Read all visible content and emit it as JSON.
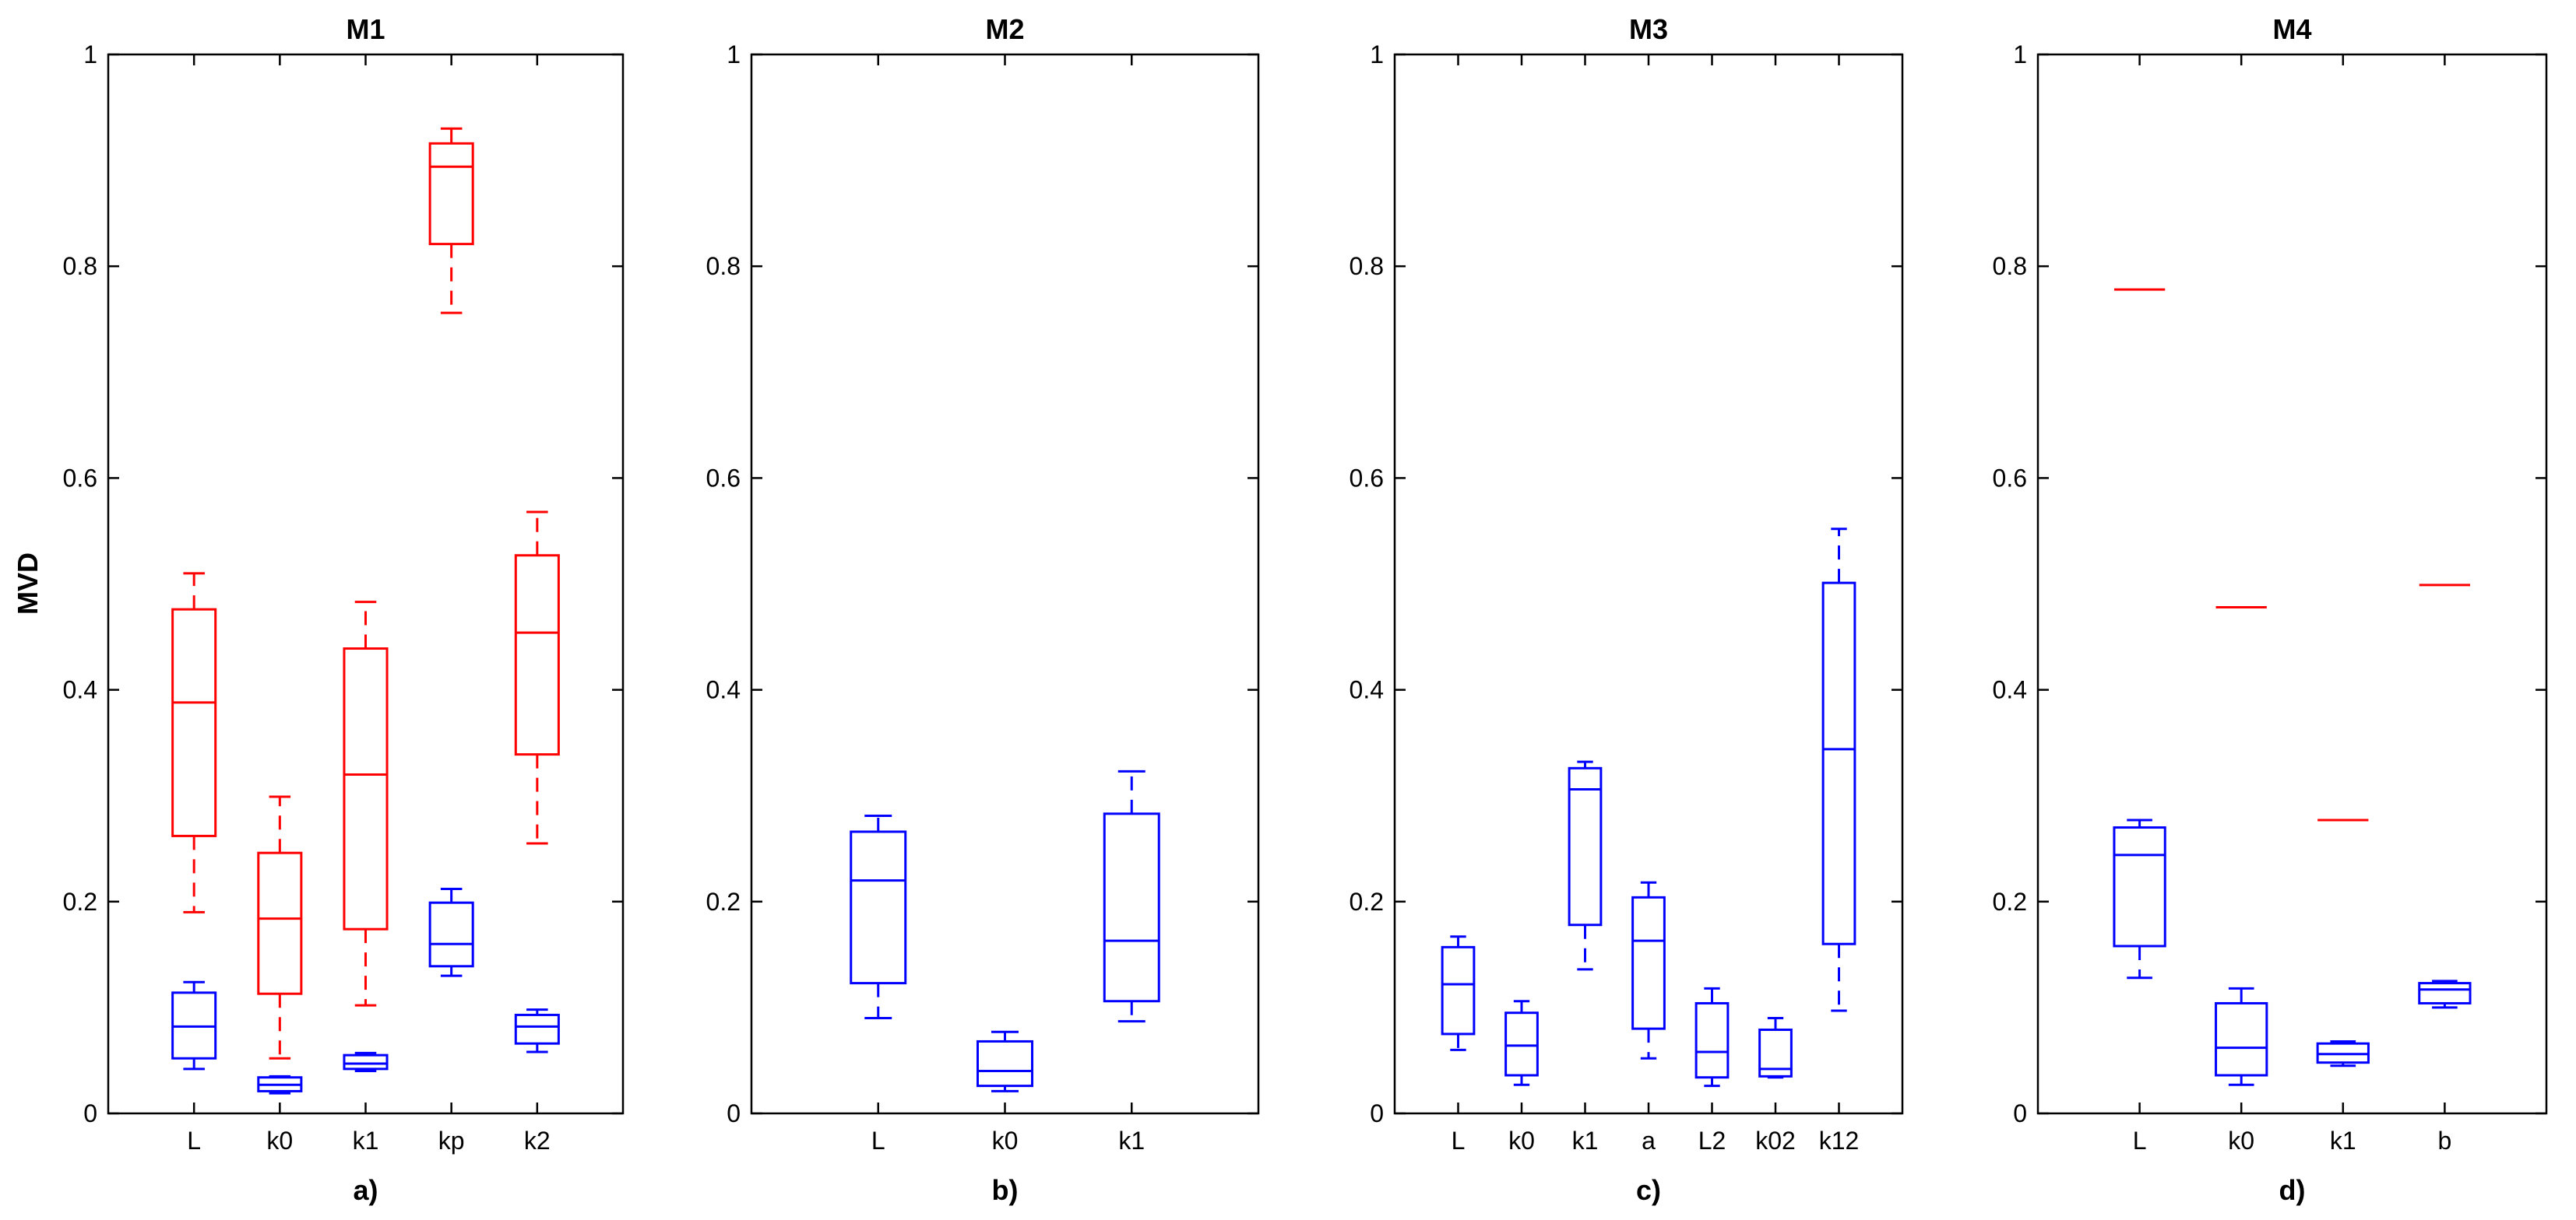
{
  "figure": {
    "ylabel": "MVD",
    "colors": {
      "red": "#ff0000",
      "blue": "#0000ff",
      "axis": "#000000"
    }
  },
  "chart_data": [
    {
      "type": "box",
      "title": "M1",
      "xlabel": "a)",
      "ylabel": "MVD",
      "ylim": [
        0,
        1
      ],
      "yticks": [
        0,
        0.2,
        0.4,
        0.6,
        0.8,
        1
      ],
      "ytick_labels": [
        "0",
        "0.2",
        "0.4",
        "0.6",
        "0.8",
        "1"
      ],
      "categories": [
        "L",
        "k0",
        "k1",
        "kp",
        "k2"
      ],
      "series": [
        {
          "name": "red",
          "color": "#ff0000",
          "boxes": [
            {
              "category": "L",
              "whisker_low": 0.19,
              "q1": 0.262,
              "median": 0.388,
              "q3": 0.476,
              "whisker_high": 0.51
            },
            {
              "category": "k0",
              "whisker_low": 0.052,
              "q1": 0.113,
              "median": 0.184,
              "q3": 0.246,
              "whisker_high": 0.299
            },
            {
              "category": "k1",
              "whisker_low": 0.102,
              "q1": 0.174,
              "median": 0.32,
              "q3": 0.439,
              "whisker_high": 0.483
            },
            {
              "category": "kp",
              "whisker_low": 0.756,
              "q1": 0.821,
              "median": 0.894,
              "q3": 0.916,
              "whisker_high": 0.93
            },
            {
              "category": "k2",
              "whisker_low": 0.255,
              "q1": 0.339,
              "median": 0.454,
              "q3": 0.527,
              "whisker_high": 0.568
            }
          ]
        },
        {
          "name": "blue",
          "color": "#0000ff",
          "boxes": [
            {
              "category": "L",
              "whisker_low": 0.042,
              "q1": 0.052,
              "median": 0.082,
              "q3": 0.114,
              "whisker_high": 0.124
            },
            {
              "category": "k0",
              "whisker_low": 0.019,
              "q1": 0.021,
              "median": 0.027,
              "q3": 0.034,
              "whisker_high": 0.035
            },
            {
              "category": "k1",
              "whisker_low": 0.04,
              "q1": 0.042,
              "median": 0.047,
              "q3": 0.055,
              "whisker_high": 0.057
            },
            {
              "category": "kp",
              "whisker_low": 0.13,
              "q1": 0.139,
              "median": 0.16,
              "q3": 0.199,
              "whisker_high": 0.212
            },
            {
              "category": "k2",
              "whisker_low": 0.058,
              "q1": 0.066,
              "median": 0.082,
              "q3": 0.093,
              "whisker_high": 0.098
            }
          ]
        }
      ]
    },
    {
      "type": "box",
      "title": "M2",
      "xlabel": "b)",
      "ylim": [
        0,
        1
      ],
      "yticks": [
        0,
        0.2,
        0.4,
        0.6,
        0.8,
        1
      ],
      "ytick_labels": [
        "0",
        "0.2",
        "0.4",
        "0.6",
        "0.8",
        "1"
      ],
      "categories": [
        "L",
        "k0",
        "k1"
      ],
      "series": [
        {
          "name": "blue",
          "color": "#0000ff",
          "boxes": [
            {
              "category": "L",
              "whisker_low": 0.09,
              "q1": 0.123,
              "median": 0.22,
              "q3": 0.266,
              "whisker_high": 0.281
            },
            {
              "category": "k0",
              "whisker_low": 0.021,
              "q1": 0.026,
              "median": 0.04,
              "q3": 0.068,
              "whisker_high": 0.077
            },
            {
              "category": "k1",
              "whisker_low": 0.087,
              "q1": 0.106,
              "median": 0.163,
              "q3": 0.283,
              "whisker_high": 0.323
            }
          ]
        }
      ]
    },
    {
      "type": "box",
      "title": "M3",
      "xlabel": "c)",
      "ylim": [
        0,
        1
      ],
      "yticks": [
        0,
        0.2,
        0.4,
        0.6,
        0.8,
        1
      ],
      "ytick_labels": [
        "0",
        "0.2",
        "0.4",
        "0.6",
        "0.8",
        "1"
      ],
      "categories": [
        "L",
        "k0",
        "k1",
        "a",
        "L2",
        "k02",
        "k12"
      ],
      "series": [
        {
          "name": "blue",
          "color": "#0000ff",
          "boxes": [
            {
              "category": "L",
              "whisker_low": 0.06,
              "q1": 0.075,
              "median": 0.122,
              "q3": 0.157,
              "whisker_high": 0.167
            },
            {
              "category": "k0",
              "whisker_low": 0.027,
              "q1": 0.036,
              "median": 0.064,
              "q3": 0.095,
              "whisker_high": 0.106
            },
            {
              "category": "k1",
              "whisker_low": 0.136,
              "q1": 0.178,
              "median": 0.306,
              "q3": 0.326,
              "whisker_high": 0.332
            },
            {
              "category": "a",
              "whisker_low": 0.052,
              "q1": 0.08,
              "median": 0.163,
              "q3": 0.204,
              "whisker_high": 0.218
            },
            {
              "category": "L2",
              "whisker_low": 0.026,
              "q1": 0.034,
              "median": 0.058,
              "q3": 0.104,
              "whisker_high": 0.118
            },
            {
              "category": "k02",
              "whisker_low": 0.034,
              "q1": 0.035,
              "median": 0.042,
              "q3": 0.079,
              "whisker_high": 0.09
            },
            {
              "category": "k12",
              "whisker_low": 0.097,
              "q1": 0.16,
              "median": 0.344,
              "q3": 0.501,
              "whisker_high": 0.552
            }
          ]
        }
      ]
    },
    {
      "type": "box",
      "title": "M4",
      "xlabel": "d)",
      "ylim": [
        0,
        1
      ],
      "yticks": [
        0,
        0.2,
        0.4,
        0.6,
        0.8,
        1
      ],
      "ytick_labels": [
        "0",
        "0.2",
        "0.4",
        "0.6",
        "0.8",
        "1"
      ],
      "categories": [
        "L",
        "k0",
        "k1",
        "b"
      ],
      "series": [
        {
          "name": "red",
          "color": "#ff0000",
          "boxes": [
            {
              "category": "L",
              "whisker_low": 0.778,
              "q1": 0.778,
              "median": 0.778,
              "q3": 0.778,
              "whisker_high": 0.778
            },
            {
              "category": "k0",
              "whisker_low": 0.478,
              "q1": 0.478,
              "median": 0.478,
              "q3": 0.478,
              "whisker_high": 0.478
            },
            {
              "category": "k1",
              "whisker_low": 0.277,
              "q1": 0.277,
              "median": 0.277,
              "q3": 0.277,
              "whisker_high": 0.277
            },
            {
              "category": "b",
              "whisker_low": 0.499,
              "q1": 0.499,
              "median": 0.499,
              "q3": 0.499,
              "whisker_high": 0.499
            }
          ]
        },
        {
          "name": "blue",
          "color": "#0000ff",
          "boxes": [
            {
              "category": "L",
              "whisker_low": 0.128,
              "q1": 0.158,
              "median": 0.244,
              "q3": 0.27,
              "whisker_high": 0.277
            },
            {
              "category": "k0",
              "whisker_low": 0.027,
              "q1": 0.036,
              "median": 0.062,
              "q3": 0.104,
              "whisker_high": 0.118
            },
            {
              "category": "k1",
              "whisker_low": 0.045,
              "q1": 0.048,
              "median": 0.056,
              "q3": 0.066,
              "whisker_high": 0.068
            },
            {
              "category": "b",
              "whisker_low": 0.1,
              "q1": 0.104,
              "median": 0.117,
              "q3": 0.123,
              "whisker_high": 0.125
            }
          ]
        }
      ]
    }
  ]
}
